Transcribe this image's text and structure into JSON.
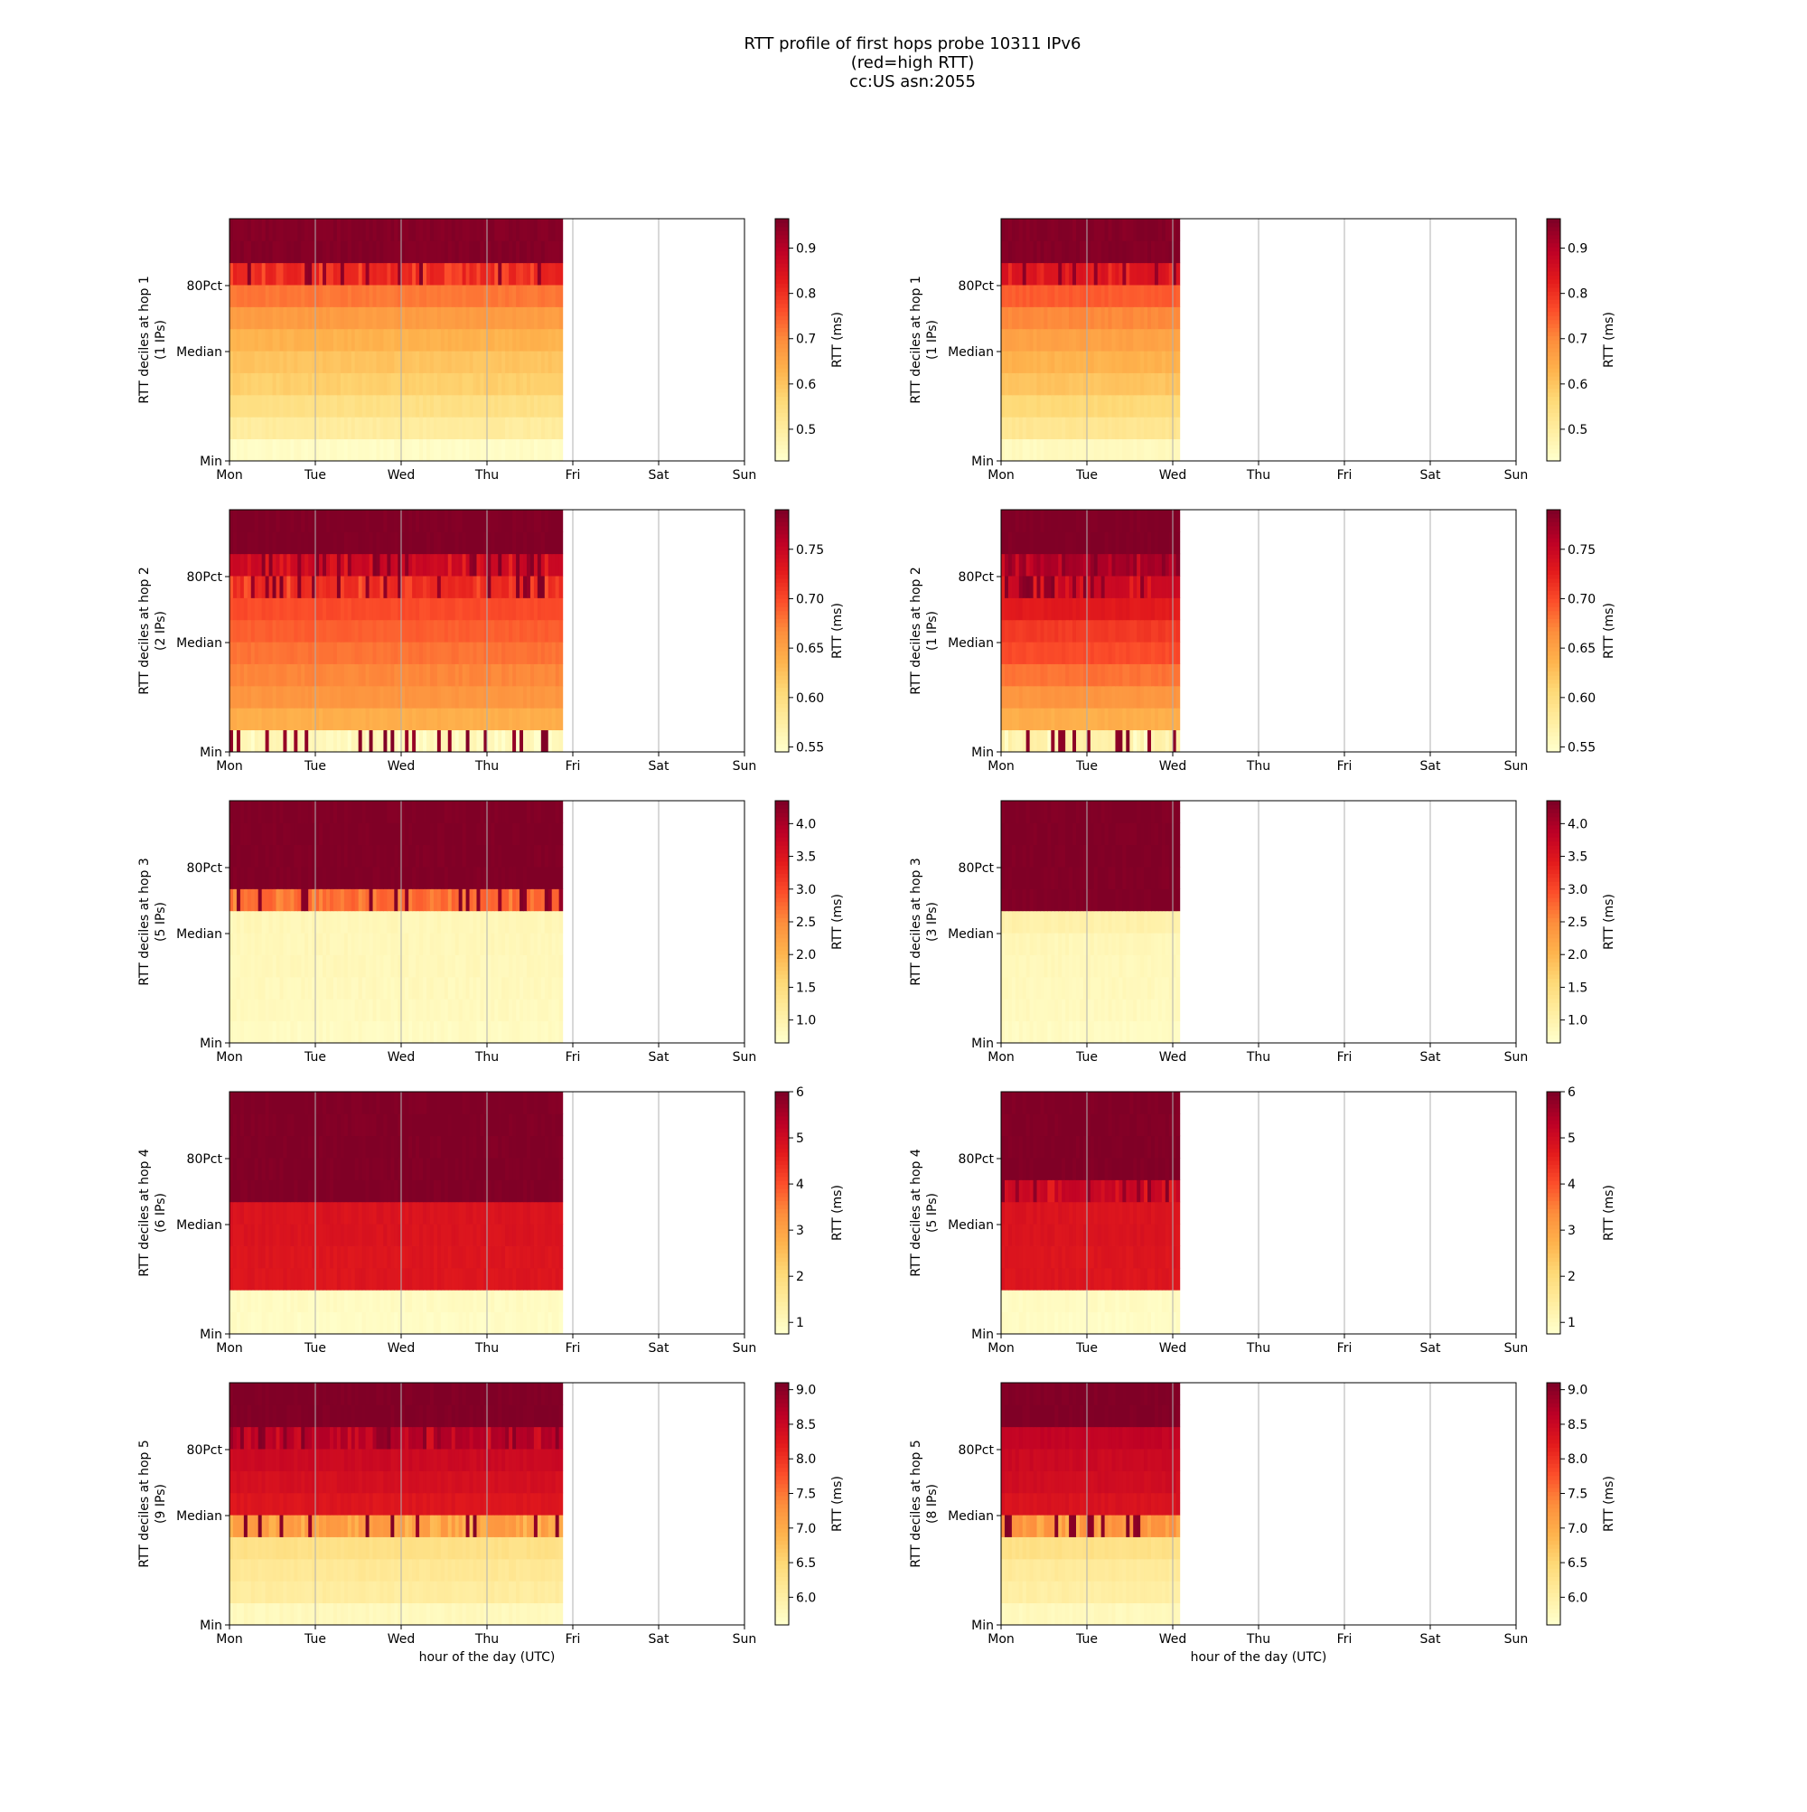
{
  "title_lines": [
    "RTT profile of first hops probe 10311 IPv6",
    "(red=high RTT)",
    "cc:US asn:2055"
  ],
  "x_tick_labels": [
    "Mon",
    "Tue",
    "Wed",
    "Thu",
    "Fri",
    "Sat",
    "Sun"
  ],
  "y_tick_labels": [
    "80Pct",
    "Median",
    "Min"
  ],
  "x_axis_label": "hour of the day (UTC)",
  "colorbar_label": "RTT (ms)",
  "colormap": [
    "#ffffcc",
    "#ffeda0",
    "#fed976",
    "#feb24c",
    "#fd8d3c",
    "#fc4e2a",
    "#e31a1c",
    "#bd0026",
    "#800026"
  ],
  "chart_data": [
    {
      "type": "heatmap",
      "col": 0,
      "row": 0,
      "ylabel": [
        "RTT deciles at hop 1",
        "(1 IPs)"
      ],
      "data_end_day": 3.88,
      "cmin": 0.43,
      "cmax": 0.965,
      "colorbar_ticks": [
        0.5,
        0.6,
        0.7,
        0.8,
        0.9
      ],
      "colorbar_tick_labels": [
        "0.5",
        "0.6",
        "0.7",
        "0.8",
        "0.9"
      ],
      "decile_values": [
        0.44,
        0.5,
        0.54,
        0.58,
        0.6,
        0.63,
        0.67,
        0.72,
        0.82,
        0.96
      ],
      "noise_bands": [
        8
      ]
    },
    {
      "type": "heatmap",
      "col": 1,
      "row": 0,
      "ylabel": [
        "RTT deciles at hop 1",
        "(1 IPs)"
      ],
      "data_end_day": 2.08,
      "cmin": 0.43,
      "cmax": 0.965,
      "colorbar_ticks": [
        0.5,
        0.6,
        0.7,
        0.8,
        0.9
      ],
      "colorbar_tick_labels": [
        "0.5",
        "0.6",
        "0.7",
        "0.8",
        "0.9"
      ],
      "decile_values": [
        0.45,
        0.52,
        0.56,
        0.6,
        0.63,
        0.66,
        0.7,
        0.75,
        0.85,
        0.96
      ],
      "noise_bands": [
        8
      ]
    },
    {
      "type": "heatmap",
      "col": 0,
      "row": 1,
      "ylabel": [
        "RTT deciles at hop 2",
        "(2 IPs)"
      ],
      "data_end_day": 3.88,
      "cmin": 0.545,
      "cmax": 0.79,
      "colorbar_ticks": [
        0.55,
        0.6,
        0.65,
        0.7,
        0.75
      ],
      "colorbar_tick_labels": [
        "0.55",
        "0.60",
        "0.65",
        "0.70",
        "0.75"
      ],
      "decile_values": [
        0.56,
        0.64,
        0.66,
        0.67,
        0.68,
        0.69,
        0.7,
        0.72,
        0.75,
        0.79
      ],
      "noise_bands": [
        0,
        7,
        8
      ]
    },
    {
      "type": "heatmap",
      "col": 1,
      "row": 1,
      "ylabel": [
        "RTT deciles at hop 2",
        "(1 IPs)"
      ],
      "data_end_day": 2.08,
      "cmin": 0.545,
      "cmax": 0.79,
      "colorbar_ticks": [
        0.55,
        0.6,
        0.65,
        0.7,
        0.75
      ],
      "colorbar_tick_labels": [
        "0.55",
        "0.60",
        "0.65",
        "0.70",
        "0.75"
      ],
      "decile_values": [
        0.57,
        0.64,
        0.66,
        0.68,
        0.7,
        0.71,
        0.73,
        0.75,
        0.77,
        0.79
      ],
      "noise_bands": [
        0,
        7,
        8
      ]
    },
    {
      "type": "heatmap",
      "col": 0,
      "row": 2,
      "ylabel": [
        "RTT deciles at hop 3",
        "(5 IPs)"
      ],
      "data_end_day": 3.88,
      "cmin": 0.65,
      "cmax": 4.35,
      "colorbar_ticks": [
        1.0,
        1.5,
        2.0,
        2.5,
        3.0,
        3.5,
        4.0
      ],
      "colorbar_tick_labels": [
        "1.0",
        "1.5",
        "2.0",
        "2.5",
        "3.0",
        "3.5",
        "4.0"
      ],
      "decile_values": [
        0.75,
        0.8,
        0.82,
        0.84,
        0.85,
        0.86,
        2.8,
        4.35,
        4.35,
        4.35
      ],
      "noise_bands": [
        6
      ]
    },
    {
      "type": "heatmap",
      "col": 1,
      "row": 2,
      "ylabel": [
        "RTT deciles at hop 3",
        "(3 IPs)"
      ],
      "data_end_day": 2.08,
      "cmin": 0.65,
      "cmax": 4.35,
      "colorbar_ticks": [
        1.0,
        1.5,
        2.0,
        2.5,
        3.0,
        3.5,
        4.0
      ],
      "colorbar_tick_labels": [
        "1.0",
        "1.5",
        "2.0",
        "2.5",
        "3.0",
        "3.5",
        "4.0"
      ],
      "decile_values": [
        0.75,
        0.8,
        0.82,
        0.84,
        0.86,
        1.0,
        4.35,
        4.35,
        4.35,
        4.35
      ],
      "noise_bands": []
    },
    {
      "type": "heatmap",
      "col": 0,
      "row": 3,
      "ylabel": [
        "RTT deciles at hop 4",
        "(6 IPs)"
      ],
      "data_end_day": 3.88,
      "cmin": 0.75,
      "cmax": 6.0,
      "colorbar_ticks": [
        1,
        2,
        3,
        4,
        5,
        6
      ],
      "colorbar_tick_labels": [
        "1",
        "2",
        "3",
        "4",
        "5",
        "6"
      ],
      "decile_values": [
        0.85,
        0.9,
        4.8,
        4.8,
        4.85,
        4.85,
        6.0,
        6.0,
        6.0,
        6.0
      ],
      "noise_bands": []
    },
    {
      "type": "heatmap",
      "col": 1,
      "row": 3,
      "ylabel": [
        "RTT deciles at hop 4",
        "(5 IPs)"
      ],
      "data_end_day": 2.08,
      "cmin": 0.75,
      "cmax": 6.0,
      "colorbar_ticks": [
        1,
        2,
        3,
        4,
        5,
        6
      ],
      "colorbar_tick_labels": [
        "1",
        "2",
        "3",
        "4",
        "5",
        "6"
      ],
      "decile_values": [
        0.85,
        0.9,
        4.8,
        4.8,
        4.85,
        4.85,
        5.2,
        6.0,
        6.0,
        6.0
      ],
      "noise_bands": [
        6
      ]
    },
    {
      "type": "heatmap",
      "col": 0,
      "row": 4,
      "ylabel": [
        "RTT deciles at hop 5",
        "(9 IPs)"
      ],
      "data_end_day": 3.88,
      "cmin": 5.6,
      "cmax": 9.1,
      "colorbar_ticks": [
        6.0,
        6.5,
        7.0,
        7.5,
        8.0,
        8.5,
        9.0
      ],
      "colorbar_tick_labels": [
        "6.0",
        "6.5",
        "7.0",
        "7.5",
        "8.0",
        "8.5",
        "9.0"
      ],
      "decile_values": [
        5.75,
        6.05,
        6.15,
        6.3,
        7.2,
        8.3,
        8.4,
        8.5,
        8.75,
        9.1
      ],
      "noise_bands": [
        4,
        8
      ]
    },
    {
      "type": "heatmap",
      "col": 1,
      "row": 4,
      "ylabel": [
        "RTT deciles at hop 5",
        "(8 IPs)"
      ],
      "data_end_day": 2.08,
      "cmin": 5.6,
      "cmax": 9.1,
      "colorbar_ticks": [
        6.0,
        6.5,
        7.0,
        7.5,
        8.0,
        8.5,
        9.0
      ],
      "colorbar_tick_labels": [
        "6.0",
        "6.5",
        "7.0",
        "7.5",
        "8.0",
        "8.5",
        "9.0"
      ],
      "decile_values": [
        5.75,
        6.0,
        6.1,
        6.3,
        7.3,
        8.35,
        8.45,
        8.5,
        8.6,
        9.1
      ],
      "noise_bands": [
        4
      ]
    }
  ]
}
